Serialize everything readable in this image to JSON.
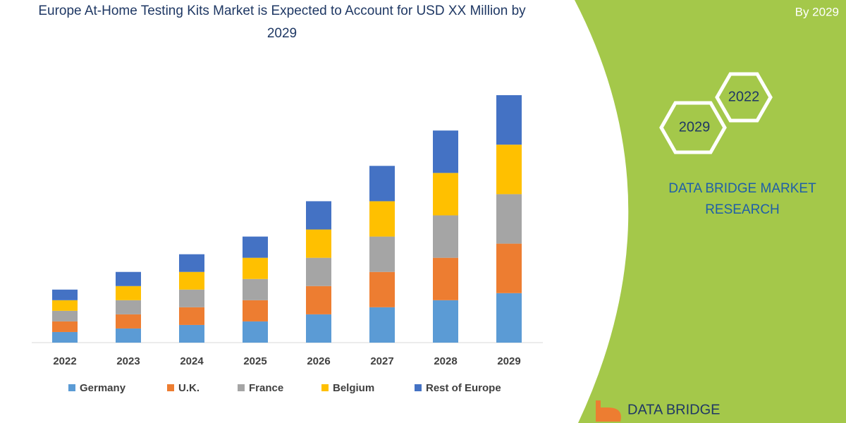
{
  "chart_data": {
    "type": "stacked_bar",
    "title": "Europe At-Home Testing Kits Market is Expected to Account for USD XX Million by 2029",
    "categories": [
      "2022",
      "2023",
      "2024",
      "2025",
      "2026",
      "2027",
      "2028",
      "2029"
    ],
    "series": [
      {
        "name": "Germany",
        "color": "#5b9bd5",
        "values": [
          15,
          20,
          25,
          30,
          40,
          50,
          60,
          70
        ]
      },
      {
        "name": "U.K.",
        "color": "#ed7d31",
        "values": [
          15,
          20,
          25,
          30,
          40,
          50,
          60,
          70
        ]
      },
      {
        "name": "France",
        "color": "#a5a5a5",
        "values": [
          15,
          20,
          25,
          30,
          40,
          50,
          60,
          70
        ]
      },
      {
        "name": "Belgium",
        "color": "#ffc000",
        "values": [
          15,
          20,
          25,
          30,
          40,
          50,
          60,
          70
        ]
      },
      {
        "name": "Rest of Europe",
        "color": "#4472c4",
        "values": [
          15,
          20,
          25,
          30,
          40,
          50,
          60,
          70
        ]
      }
    ],
    "legend": "bottom"
  },
  "panel": {
    "period": "By 2029",
    "hex_top": "2022",
    "hex_bottom": "2029",
    "brand_line1": "DATA BRIDGE MARKET",
    "brand_line2": "RESEARCH",
    "logo": "DATA BRIDGE"
  }
}
